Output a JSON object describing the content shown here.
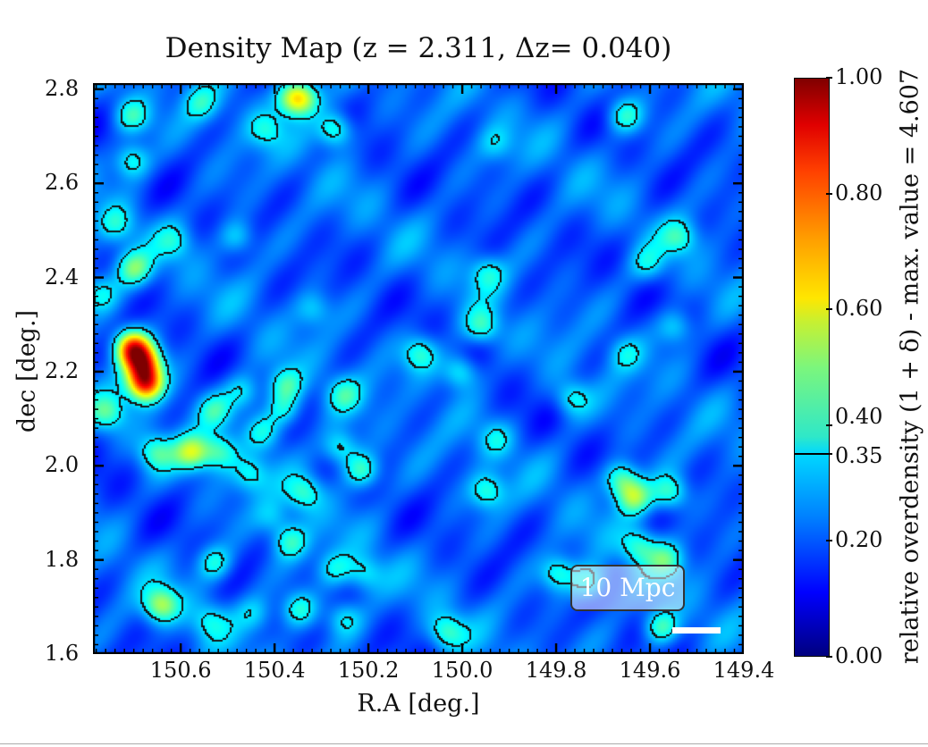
{
  "chart_data": {
    "type": "heatmap",
    "title": "Density Map (z = 2.311, Δz= 0.040)",
    "xlabel": "R.A [deg.]",
    "ylabel": "dec [deg.]",
    "xlim": [
      150.787,
      149.4
    ],
    "ylim": [
      1.6,
      2.813
    ],
    "x_inverted": true,
    "xticks": [
      "150.6",
      "150.4",
      "150.2",
      "150.0",
      "149.8",
      "149.6",
      "149.4"
    ],
    "yticks": [
      "1.6",
      "1.8",
      "2.0",
      "2.2",
      "2.4",
      "2.6",
      "2.8"
    ],
    "colormap": "jet",
    "colorbar": {
      "label": "relative overdensity (1 + δ) - max. value = 4.607",
      "range": [
        0.0,
        1.0
      ],
      "ticks": [
        "0.00",
        "0.20",
        "0.35",
        "0.40",
        "0.60",
        "0.80",
        "1.00"
      ],
      "contour_level": 0.35
    },
    "contour_level": 0.35,
    "contour_color": "#000000",
    "background_level": 0.25,
    "scale_bar": {
      "label": "10 Mpc",
      "color": "#ffffff"
    },
    "peaks_ra_dec_value": [
      [
        150.703,
        2.251,
        0.8
      ],
      [
        150.68,
        2.219,
        0.75
      ],
      [
        150.675,
        2.175,
        0.85
      ],
      [
        150.757,
        2.114,
        0.45
      ],
      [
        150.576,
        2.028,
        0.56
      ],
      [
        150.652,
        2.028,
        0.46
      ],
      [
        150.518,
        2.028,
        0.46
      ],
      [
        150.703,
        2.743,
        0.45
      ],
      [
        150.703,
        2.647,
        0.46
      ],
      [
        150.737,
        2.514,
        0.4
      ],
      [
        150.699,
        2.419,
        0.5
      ],
      [
        150.772,
        2.365,
        0.4
      ],
      [
        150.36,
        2.781,
        0.56
      ],
      [
        150.271,
        2.714,
        0.5
      ],
      [
        150.418,
        2.714,
        0.4
      ],
      [
        150.557,
        2.771,
        0.4
      ],
      [
        150.614,
        2.476,
        0.38
      ],
      [
        150.48,
        2.485,
        0.4
      ],
      [
        150.528,
        2.118,
        0.42
      ],
      [
        150.467,
        2.156,
        0.4
      ],
      [
        150.423,
        2.072,
        0.42
      ],
      [
        150.376,
        2.171,
        0.46
      ],
      [
        150.379,
        2.118,
        0.44
      ],
      [
        150.452,
        1.981,
        0.4
      ],
      [
        150.337,
        1.943,
        0.45
      ],
      [
        150.366,
        1.838,
        0.45
      ],
      [
        150.261,
        2.038,
        0.45
      ],
      [
        150.214,
        1.99,
        0.5
      ],
      [
        150.252,
        2.152,
        0.42
      ],
      [
        150.318,
        2.333,
        0.37
      ],
      [
        149.947,
        2.409,
        0.41
      ],
      [
        149.957,
        2.295,
        0.45
      ],
      [
        150.09,
        2.238,
        0.45
      ],
      [
        150.004,
        2.2,
        0.45
      ],
      [
        149.766,
        2.143,
        0.42
      ],
      [
        149.947,
        1.946,
        0.45
      ],
      [
        149.928,
        2.057,
        0.38
      ],
      [
        149.652,
        2.743,
        0.46
      ],
      [
        149.537,
        2.485,
        0.42
      ],
      [
        149.604,
        2.428,
        0.38
      ],
      [
        149.547,
        2.295,
        0.4
      ],
      [
        149.652,
        2.238,
        0.38
      ],
      [
        149.661,
        1.971,
        0.5
      ],
      [
        149.633,
        1.933,
        0.55
      ],
      [
        149.557,
        1.943,
        0.48
      ],
      [
        149.623,
        1.828,
        0.45
      ],
      [
        149.566,
        1.8,
        0.45
      ],
      [
        149.795,
        1.771,
        0.45
      ],
      [
        149.576,
        1.657,
        0.5
      ],
      [
        150.642,
        1.704,
        0.55
      ],
      [
        150.528,
        1.794,
        0.45
      ],
      [
        150.538,
        1.67,
        0.38
      ],
      [
        150.347,
        1.695,
        0.45
      ],
      [
        150.271,
        1.781,
        0.4
      ],
      [
        150.208,
        1.771,
        0.4
      ],
      [
        150.252,
        1.676,
        0.4
      ],
      [
        150.033,
        1.647,
        0.45
      ],
      [
        149.728,
        1.752,
        0.45
      ],
      [
        150.442,
        1.685,
        0.36
      ],
      [
        150.404,
        1.889,
        0.36
      ],
      [
        150.337,
        2.781,
        0.5
      ],
      [
        149.928,
        2.685,
        0.36
      ]
    ]
  }
}
